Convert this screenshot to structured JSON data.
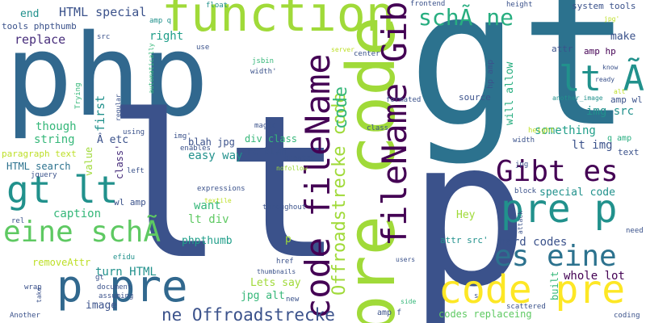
{
  "colors": {
    "background": "#ffffff",
    "palette": [
      "#440154",
      "#472d7b",
      "#3b528b",
      "#31688e",
      "#2c728e",
      "#21918c",
      "#1f9e89",
      "#28ae80",
      "#35b779",
      "#5ec962",
      "#a0da39",
      "#bddf26",
      "#fde725"
    ]
  },
  "words": [
    "gt",
    "php",
    "lt",
    "p",
    "pre code",
    "function",
    "code pre",
    "fileName Gibt",
    "code fileName",
    "pre p",
    "gt lt",
    "Gibt es",
    "eine schÃ",
    "es eine",
    "p pre",
    "lt Ã",
    "schÃ ne",
    "Offroadstrecke code",
    "ne Offroadstrecke",
    "code",
    "HTML special",
    "end",
    "tools phpthumb",
    "replace",
    "right",
    "first",
    "though",
    "string",
    "paragraph text",
    "HTML search",
    "Â etc",
    "caption",
    "removeAttr",
    "turn HTML",
    "image",
    "easy way",
    "want",
    "lt div",
    "phpthumb",
    "blah jpg",
    "div class",
    "src blah",
    "p",
    "Lets say",
    "jpg alt",
    "whole lot",
    "codes replaceing",
    "hard codes",
    "special code",
    "Hey",
    "attr src'",
    "built",
    "something",
    "lt img",
    "img src",
    "make",
    "amp hp",
    "amp wl",
    "will allow",
    "source",
    "hp amp",
    "attr",
    "system tools",
    "height",
    "frontend",
    "float",
    "text",
    "q amp",
    "need",
    "coding",
    "value",
    "class'",
    "src",
    "amp q",
    "use",
    "jsbin",
    "width'",
    "automatically",
    "Trying",
    "regular",
    "using",
    "img'",
    "enables",
    "left",
    "jquery",
    "rel",
    "efidu",
    "wrap",
    "take",
    "Another",
    "gt",
    "document",
    "assuming",
    "new",
    "amp f",
    "s",
    "side",
    "users",
    "scattered",
    "attack",
    "block",
    "jpg",
    "textile",
    "href",
    "thumbnails",
    "throughout",
    "nofollow",
    "created",
    "expressions",
    "magic",
    "class",
    "formated",
    "height'",
    "width",
    "another_image",
    "ready",
    "know",
    "alt'",
    "jpg'",
    "center",
    "server",
    "wl amp"
  ]
}
